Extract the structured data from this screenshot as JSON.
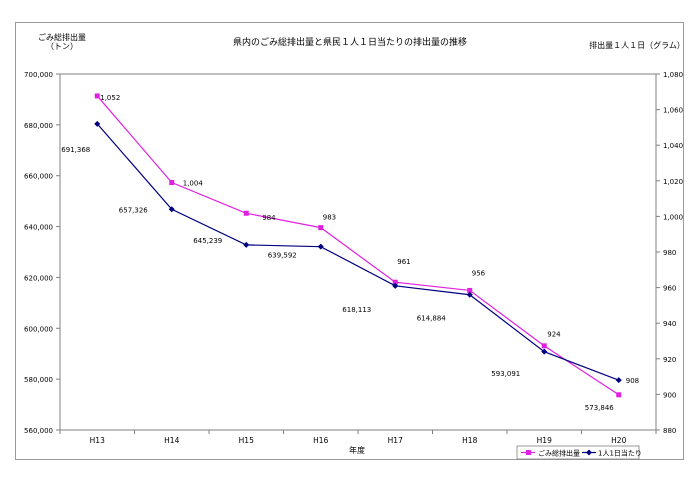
{
  "chart_data": {
    "type": "line",
    "title": "県内のごみ総排出量と県民１人１日当たりの排出量の推移",
    "xlabel": "年度",
    "ylabel_left": "ごみ総排出量\n（トン）",
    "ylabel_right": "排出量１人１日（グラム）",
    "categories": [
      "H13",
      "H14",
      "H15",
      "H16",
      "H17",
      "H18",
      "H19",
      "H20"
    ],
    "y_left": {
      "min": 560000,
      "max": 700000,
      "step": 20000,
      "ticks": [
        "560,000",
        "580,000",
        "600,000",
        "620,000",
        "640,000",
        "660,000",
        "680,000",
        "700,000"
      ]
    },
    "y_right": {
      "min": 880,
      "max": 1080,
      "step": 20,
      "ticks": [
        "880",
        "900",
        "920",
        "940",
        "960",
        "980",
        "1,000",
        "1,020",
        "1,040",
        "1,060",
        "1,080"
      ]
    },
    "series": [
      {
        "name": "ごみ総排出量",
        "axis": "left",
        "color": "#e020e0",
        "marker": "square",
        "values": [
          691368,
          657326,
          645239,
          639592,
          618113,
          614884,
          593091,
          573846
        ],
        "labels": [
          "691,368",
          "657,326",
          "645,239",
          "639,592",
          "618,113",
          "614,884",
          "593,091",
          "573,846"
        ]
      },
      {
        "name": "1人1日当たり",
        "axis": "right",
        "color": "#000080",
        "marker": "diamond",
        "values": [
          1052,
          1004,
          984,
          983,
          961,
          956,
          924,
          908
        ],
        "labels": [
          "1,052",
          "1,004",
          "984",
          "983",
          "961",
          "956",
          "924",
          "908"
        ]
      }
    ],
    "legend_position": "bottom-right",
    "grid": false
  }
}
